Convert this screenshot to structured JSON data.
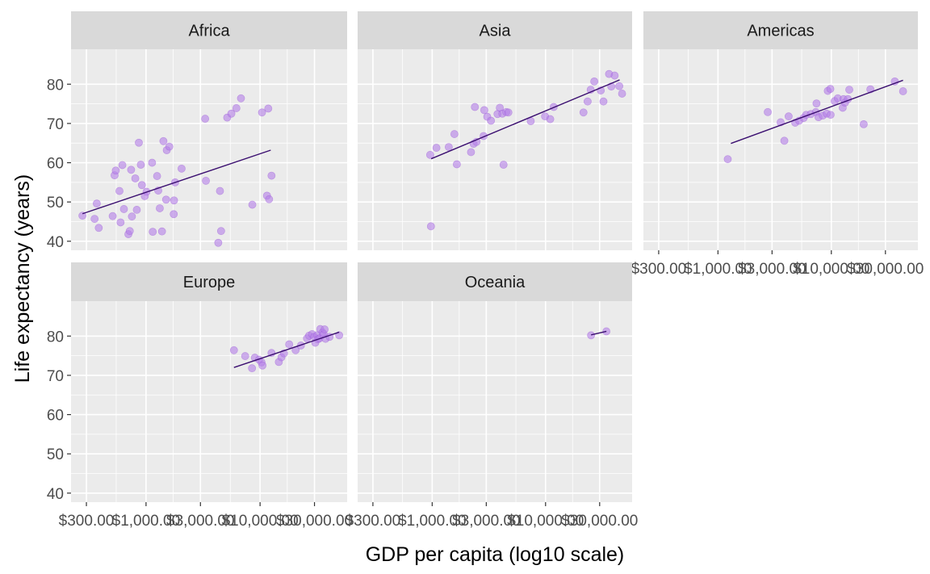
{
  "chart_data": {
    "type": "scatter",
    "facets": [
      "Africa",
      "Asia",
      "Americas",
      "Europe",
      "Oceania"
    ],
    "xlabel": "GDP per capita (log10 scale)",
    "ylabel": "Life expectancy (years)",
    "x_scale": "log10",
    "x_ticks": [
      300,
      1000,
      3000,
      10000,
      30000
    ],
    "x_tick_labels": [
      "$300.00",
      "$1,000.00",
      "$3,000.00",
      "$10,000.00",
      "$30,000.00"
    ],
    "xlim": [
      220,
      58000
    ],
    "y_ticks": [
      40,
      50,
      60,
      70,
      80
    ],
    "y_tick_labels": [
      "40",
      "50",
      "60",
      "70",
      "80"
    ],
    "ylim": [
      37.7,
      88.9
    ],
    "grid": true,
    "colors": {
      "panel_background": "#ebebeb",
      "strip_background": "#d9d9d9",
      "grid_line": "#ffffff",
      "point_fill": "#b47ee8",
      "trend_line": "#3b0f70"
    },
    "panels": [
      {
        "facet": "Africa",
        "trend": [
          [
            277,
            47.0
          ],
          [
            12400,
            63.2
          ]
        ],
        "points": [
          [
            277,
            46.5
          ],
          [
            354,
            45.7
          ],
          [
            370,
            49.6
          ],
          [
            385,
            43.4
          ],
          [
            510,
            46.4
          ],
          [
            530,
            56.8
          ],
          [
            543,
            58.0
          ],
          [
            585,
            52.8
          ],
          [
            598,
            44.8
          ],
          [
            620,
            59.4
          ],
          [
            640,
            48.2
          ],
          [
            700,
            41.8
          ],
          [
            720,
            42.6
          ],
          [
            740,
            58.2
          ],
          [
            752,
            46.3
          ],
          [
            805,
            56.0
          ],
          [
            830,
            48.0
          ],
          [
            865,
            65.1
          ],
          [
            900,
            59.5
          ],
          [
            920,
            54.3
          ],
          [
            975,
            51.5
          ],
          [
            1010,
            52.6
          ],
          [
            1130,
            60.0
          ],
          [
            1145,
            42.4
          ],
          [
            1250,
            56.6
          ],
          [
            1280,
            52.9
          ],
          [
            1320,
            48.4
          ],
          [
            1380,
            42.5
          ],
          [
            1420,
            65.5
          ],
          [
            1500,
            50.6
          ],
          [
            1520,
            63.2
          ],
          [
            1600,
            64.1
          ],
          [
            1750,
            46.9
          ],
          [
            1760,
            50.4
          ],
          [
            1800,
            55.0
          ],
          [
            2050,
            58.5
          ],
          [
            3300,
            71.2
          ],
          [
            3350,
            55.4
          ],
          [
            4300,
            39.6
          ],
          [
            4450,
            52.8
          ],
          [
            4550,
            42.6
          ],
          [
            5150,
            71.5
          ],
          [
            5600,
            72.5
          ],
          [
            6200,
            73.9
          ],
          [
            6800,
            76.4
          ],
          [
            8550,
            49.3
          ],
          [
            10400,
            72.8
          ],
          [
            11500,
            51.6
          ],
          [
            11800,
            73.8
          ],
          [
            12000,
            50.7
          ],
          [
            12600,
            56.7
          ]
        ]
      },
      {
        "facet": "Asia",
        "trend": [
          [
            980,
            61.0
          ],
          [
            45000,
            81.1
          ]
        ],
        "points": [
          [
            960,
            62.0
          ],
          [
            975,
            43.8
          ],
          [
            1090,
            63.8
          ],
          [
            1400,
            64.0
          ],
          [
            1570,
            67.3
          ],
          [
            1650,
            59.6
          ],
          [
            2200,
            62.7
          ],
          [
            2320,
            64.8
          ],
          [
            2380,
            74.2
          ],
          [
            2460,
            65.3
          ],
          [
            2840,
            66.8
          ],
          [
            2880,
            73.4
          ],
          [
            3060,
            71.7
          ],
          [
            3300,
            70.7
          ],
          [
            3770,
            72.4
          ],
          [
            3950,
            74.0
          ],
          [
            4160,
            72.5
          ],
          [
            4260,
            59.5
          ],
          [
            4500,
            72.9
          ],
          [
            4700,
            72.8
          ],
          [
            7400,
            70.6
          ],
          [
            9900,
            71.8
          ],
          [
            11000,
            71.1
          ],
          [
            11800,
            74.2
          ],
          [
            21600,
            72.8
          ],
          [
            23500,
            75.6
          ],
          [
            25000,
            78.6
          ],
          [
            26900,
            80.7
          ],
          [
            30700,
            78.4
          ],
          [
            32400,
            75.6
          ],
          [
            36300,
            82.6
          ],
          [
            38000,
            79.4
          ],
          [
            40700,
            82.2
          ],
          [
            44700,
            79.5
          ],
          [
            47300,
            77.6
          ]
        ]
      },
      {
        "facet": "Americas",
        "trend": [
          [
            1300,
            64.9
          ],
          [
            42900,
            81.0
          ]
        ],
        "points": [
          [
            1220,
            60.9
          ],
          [
            2750,
            72.9
          ],
          [
            3570,
            70.3
          ],
          [
            3850,
            65.6
          ],
          [
            4200,
            71.8
          ],
          [
            4800,
            70.2
          ],
          [
            5200,
            70.7
          ],
          [
            5700,
            71.4
          ],
          [
            6000,
            72.2
          ],
          [
            6600,
            72.4
          ],
          [
            7300,
            72.9
          ],
          [
            7400,
            75.1
          ],
          [
            7700,
            71.6
          ],
          [
            8400,
            72.0
          ],
          [
            9100,
            72.5
          ],
          [
            9300,
            78.3
          ],
          [
            9800,
            78.8
          ],
          [
            9850,
            72.2
          ],
          [
            10700,
            75.7
          ],
          [
            11400,
            76.4
          ],
          [
            12600,
            74.0
          ],
          [
            12800,
            76.2
          ],
          [
            13200,
            75.3
          ],
          [
            14000,
            76.2
          ],
          [
            14400,
            78.6
          ],
          [
            19300,
            69.8
          ],
          [
            22100,
            78.7
          ],
          [
            36300,
            80.7
          ],
          [
            42900,
            78.2
          ]
        ]
      },
      {
        "facet": "Europe",
        "trend": [
          [
            5900,
            72.0
          ],
          [
            49400,
            81.0
          ]
        ],
        "points": [
          [
            5900,
            76.4
          ],
          [
            7400,
            74.9
          ],
          [
            8500,
            71.8
          ],
          [
            9000,
            74.5
          ],
          [
            9800,
            74.0
          ],
          [
            10300,
            73.3
          ],
          [
            10500,
            72.5
          ],
          [
            12600,
            75.7
          ],
          [
            14600,
            73.4
          ],
          [
            15400,
            74.6
          ],
          [
            16200,
            75.6
          ],
          [
            18000,
            77.9
          ],
          [
            20500,
            76.4
          ],
          [
            22800,
            77.6
          ],
          [
            25800,
            79.4
          ],
          [
            26900,
            80.1
          ],
          [
            28600,
            80.5
          ],
          [
            29800,
            79.8
          ],
          [
            30500,
            78.3
          ],
          [
            31700,
            80.2
          ],
          [
            32200,
            79.2
          ],
          [
            33200,
            79.4
          ],
          [
            33700,
            81.8
          ],
          [
            35300,
            80.9
          ],
          [
            36100,
            80.5
          ],
          [
            36800,
            81.7
          ],
          [
            37500,
            79.3
          ],
          [
            40700,
            79.8
          ],
          [
            49400,
            80.2
          ]
        ]
      },
      {
        "facet": "Oceania",
        "trend": [
          [
            25200,
            80.3
          ],
          [
            34400,
            81.2
          ]
        ],
        "points": [
          [
            25200,
            80.2
          ],
          [
            34400,
            81.2
          ]
        ]
      }
    ]
  }
}
